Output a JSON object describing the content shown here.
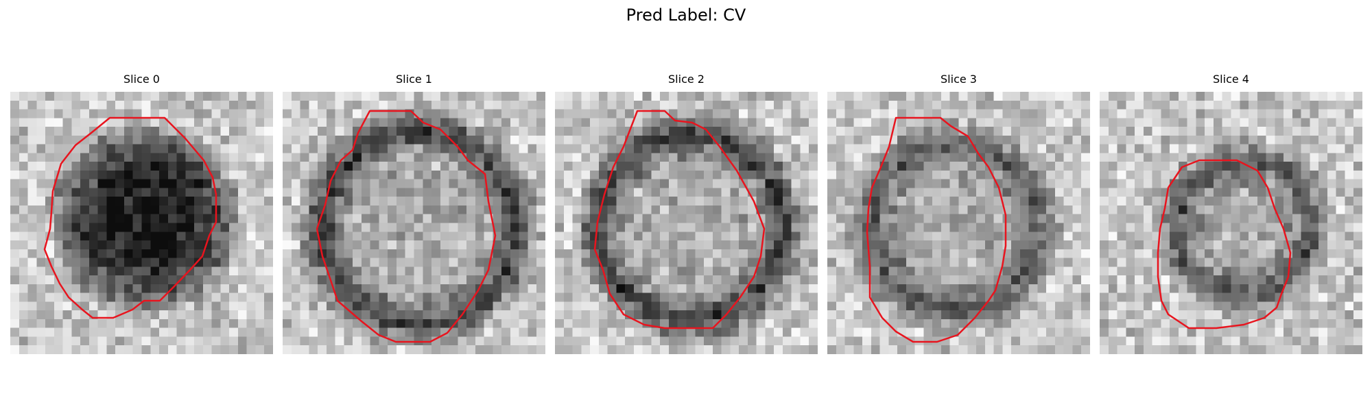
{
  "figure": {
    "title": "Pred Label: CV"
  },
  "contour_color": "#e8141e",
  "colormap": "gray",
  "slices": [
    {
      "title": "Slice 0"
    },
    {
      "title": "Slice 1"
    },
    {
      "title": "Slice 2"
    },
    {
      "title": "Slice 3"
    },
    {
      "title": "Slice 4"
    }
  ]
}
